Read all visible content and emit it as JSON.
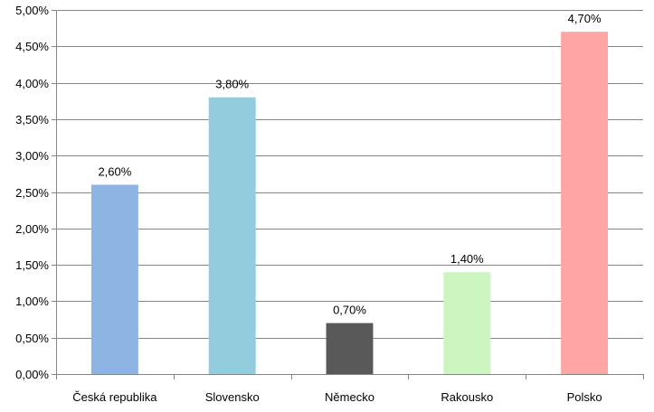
{
  "chart_data": {
    "type": "bar",
    "categories": [
      "Česká republika",
      "Slovensko",
      "Německo",
      "Rakousko",
      "Polsko"
    ],
    "values": [
      2.6,
      3.8,
      0.7,
      1.4,
      4.7
    ],
    "value_labels": [
      "2,60%",
      "3,80%",
      "0,70%",
      "1,40%",
      "4,70%"
    ],
    "bar_colors": [
      "#8EB4E3",
      "#93CDDD",
      "#595959",
      "#CCF5C0",
      "#FFA5A5"
    ],
    "ylim": [
      0,
      5
    ],
    "yticks": [
      0,
      0.5,
      1,
      1.5,
      2,
      2.5,
      3,
      3.5,
      4,
      4.5,
      5
    ],
    "ytick_labels": [
      "0,00%",
      "0,50%",
      "1,00%",
      "1,50%",
      "2,00%",
      "2,50%",
      "3,00%",
      "3,50%",
      "4,00%",
      "4,50%",
      "5,00%"
    ],
    "grid": true,
    "grid_color": "#868686",
    "title": "",
    "xlabel": "",
    "ylabel": ""
  }
}
